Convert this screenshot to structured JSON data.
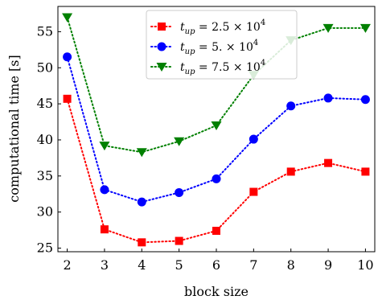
{
  "chart_data": {
    "type": "line",
    "xlabel": "block size",
    "ylabel": "computational time [s]",
    "x": [
      2,
      3,
      4,
      5,
      6,
      7,
      8,
      9,
      10
    ],
    "xlim": [
      1.75,
      10.25
    ],
    "ylim": [
      24.5,
      58.5
    ],
    "xticks": [
      "2",
      "3",
      "4",
      "5",
      "6",
      "7",
      "8",
      "9",
      "10"
    ],
    "yticks": [
      "25",
      "30",
      "35",
      "40",
      "45",
      "50",
      "55"
    ],
    "grid": false,
    "legend_position": "top-center",
    "series": [
      {
        "name": "t_up = 2.5 × 10^4",
        "color": "#ff0000",
        "marker": "square",
        "linestyle": "dotted",
        "values": [
          45.7,
          27.6,
          25.8,
          26.0,
          27.4,
          32.8,
          35.6,
          36.8,
          35.6
        ]
      },
      {
        "name": "t_up = 5. × 10^4",
        "color": "#0000ff",
        "marker": "circle",
        "linestyle": "dotted",
        "values": [
          51.5,
          33.1,
          31.4,
          32.7,
          34.6,
          40.1,
          44.7,
          45.8,
          45.6
        ]
      },
      {
        "name": "t_up = 7.5 × 10^4",
        "color": "#008000",
        "marker": "triangle-down",
        "linestyle": "dotted",
        "values": [
          57.0,
          39.2,
          38.3,
          39.8,
          42.0,
          49.0,
          53.8,
          55.5,
          55.5
        ]
      }
    ]
  },
  "legend": [
    {
      "sub": "up",
      "rest": " = 2.5 × 10",
      "exp": "4"
    },
    {
      "sub": "up",
      "rest": " = 5. × 10",
      "exp": "4"
    },
    {
      "sub": "up",
      "rest": " = 7.5 × 10",
      "exp": "4"
    }
  ]
}
